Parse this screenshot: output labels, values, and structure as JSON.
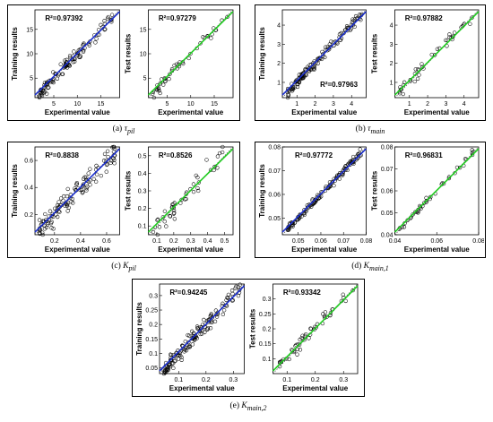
{
  "chart_data": [
    {
      "id": "a",
      "type": "scatter",
      "caption_prefix": "(a)",
      "caption_symbol": "τ",
      "caption_subscript": "pil",
      "subplots": [
        {
          "role": "training",
          "ylabel": "Training results",
          "xlabel": "Experimental value",
          "r2": "R²=0.97392",
          "xlim": [
            1,
            19
          ],
          "ylim": [
            1,
            19
          ],
          "xticks": [
            5,
            10,
            15
          ],
          "yticks": [
            5,
            10,
            15
          ],
          "fit_color": "#1a2ecc",
          "n_points": 110,
          "noise": 0.07
        },
        {
          "role": "test",
          "ylabel": "Test results",
          "xlabel": "Experimental value",
          "r2": "R²=0.97279",
          "xlim": [
            1,
            19
          ],
          "ylim": [
            1,
            19
          ],
          "xticks": [
            5,
            10,
            15
          ],
          "yticks": [
            5,
            10,
            15
          ],
          "fit_color": "#22cc22",
          "n_points": 45,
          "noise": 0.07
        }
      ]
    },
    {
      "id": "b",
      "type": "scatter",
      "caption_prefix": "(b)",
      "caption_symbol": "τ",
      "caption_subscript": "main",
      "subplots": [
        {
          "role": "training",
          "ylabel": "Training results",
          "xlabel": "Experimental value",
          "r2": "R²=0.97963",
          "xlim": [
            0.2,
            4.8
          ],
          "ylim": [
            0.2,
            4.8
          ],
          "xticks": [
            1,
            2,
            3,
            4
          ],
          "yticks": [
            1,
            2,
            3,
            4
          ],
          "fit_color": "#1a2ecc",
          "n_points": 130,
          "noise": 0.06
        },
        {
          "role": "test",
          "ylabel": "Test results",
          "xlabel": "Experimental value",
          "r2": "R²=0.97882",
          "xlim": [
            0.2,
            4.8
          ],
          "ylim": [
            0.2,
            4.8
          ],
          "xticks": [
            1,
            2,
            3,
            4
          ],
          "yticks": [
            1,
            2,
            3,
            4
          ],
          "fit_color": "#22cc22",
          "n_points": 40,
          "noise": 0.06
        }
      ]
    },
    {
      "id": "c",
      "type": "scatter",
      "caption_prefix": "(c)",
      "caption_symbol": "K",
      "caption_subscript": "pil",
      "subplots": [
        {
          "role": "training",
          "ylabel": "Training results",
          "xlabel": "Experimental value",
          "r2": "R²=0.8838",
          "xlim": [
            0.05,
            0.7
          ],
          "ylim": [
            0.05,
            0.7
          ],
          "xticks": [
            0.2,
            0.4,
            0.6
          ],
          "yticks": [
            0.2,
            0.4,
            0.6
          ],
          "fit_color": "#1a2ecc",
          "n_points": 120,
          "noise": 0.14
        },
        {
          "role": "test",
          "ylabel": "Test results",
          "xlabel": "Experimental value",
          "r2": "R²=0.8526",
          "xlim": [
            0.05,
            0.55
          ],
          "ylim": [
            0.05,
            0.55
          ],
          "xticks": [
            0.1,
            0.2,
            0.3,
            0.4,
            0.5
          ],
          "yticks": [
            0.1,
            0.2,
            0.3,
            0.4,
            0.5
          ],
          "fit_color": "#22cc22",
          "n_points": 45,
          "noise": 0.14
        }
      ]
    },
    {
      "id": "d",
      "type": "scatter",
      "caption_prefix": "(d)",
      "caption_symbol": "K",
      "caption_subscript": "main,1",
      "subplots": [
        {
          "role": "training",
          "ylabel": "Training results",
          "xlabel": "Experimental value",
          "r2": "R²=0.97772",
          "xlim": [
            0.043,
            0.08
          ],
          "ylim": [
            0.043,
            0.08
          ],
          "xticks": [
            0.05,
            0.06,
            0.07,
            0.08
          ],
          "yticks": [
            0.05,
            0.06,
            0.07,
            0.08
          ],
          "fit_color": "#1a2ecc",
          "n_points": 130,
          "noise": 0.04
        },
        {
          "role": "test",
          "ylabel": "Test results",
          "xlabel": "Experimental value",
          "r2": "R²=0.96831",
          "xlim": [
            0.04,
            0.08
          ],
          "ylim": [
            0.04,
            0.08
          ],
          "xticks": [
            0.04,
            0.06,
            0.08
          ],
          "yticks": [
            0.04,
            0.05,
            0.06,
            0.07,
            0.08
          ],
          "fit_color": "#22cc22",
          "n_points": 40,
          "noise": 0.04
        }
      ]
    },
    {
      "id": "e",
      "type": "scatter",
      "caption_prefix": "(e)",
      "caption_symbol": "K",
      "caption_subscript": "main,2",
      "subplots": [
        {
          "role": "training",
          "ylabel": "Training results",
          "xlabel": "Experimental value",
          "r2": "R²=0.94245",
          "xlim": [
            0.03,
            0.34
          ],
          "ylim": [
            0.03,
            0.34
          ],
          "xticks": [
            0.1,
            0.2,
            0.3
          ],
          "yticks": [
            0.05,
            0.1,
            0.15,
            0.2,
            0.25,
            0.3
          ],
          "fit_color": "#1a2ecc",
          "n_points": 140,
          "noise": 0.08
        },
        {
          "role": "test",
          "ylabel": "Test results",
          "xlabel": "Experimental value",
          "r2": "R²=0.93342",
          "xlim": [
            0.05,
            0.35
          ],
          "ylim": [
            0.05,
            0.35
          ],
          "xticks": [
            0.1,
            0.2,
            0.3
          ],
          "yticks": [
            0.1,
            0.15,
            0.2,
            0.25,
            0.3
          ],
          "fit_color": "#22cc22",
          "n_points": 50,
          "noise": 0.08
        }
      ]
    }
  ]
}
